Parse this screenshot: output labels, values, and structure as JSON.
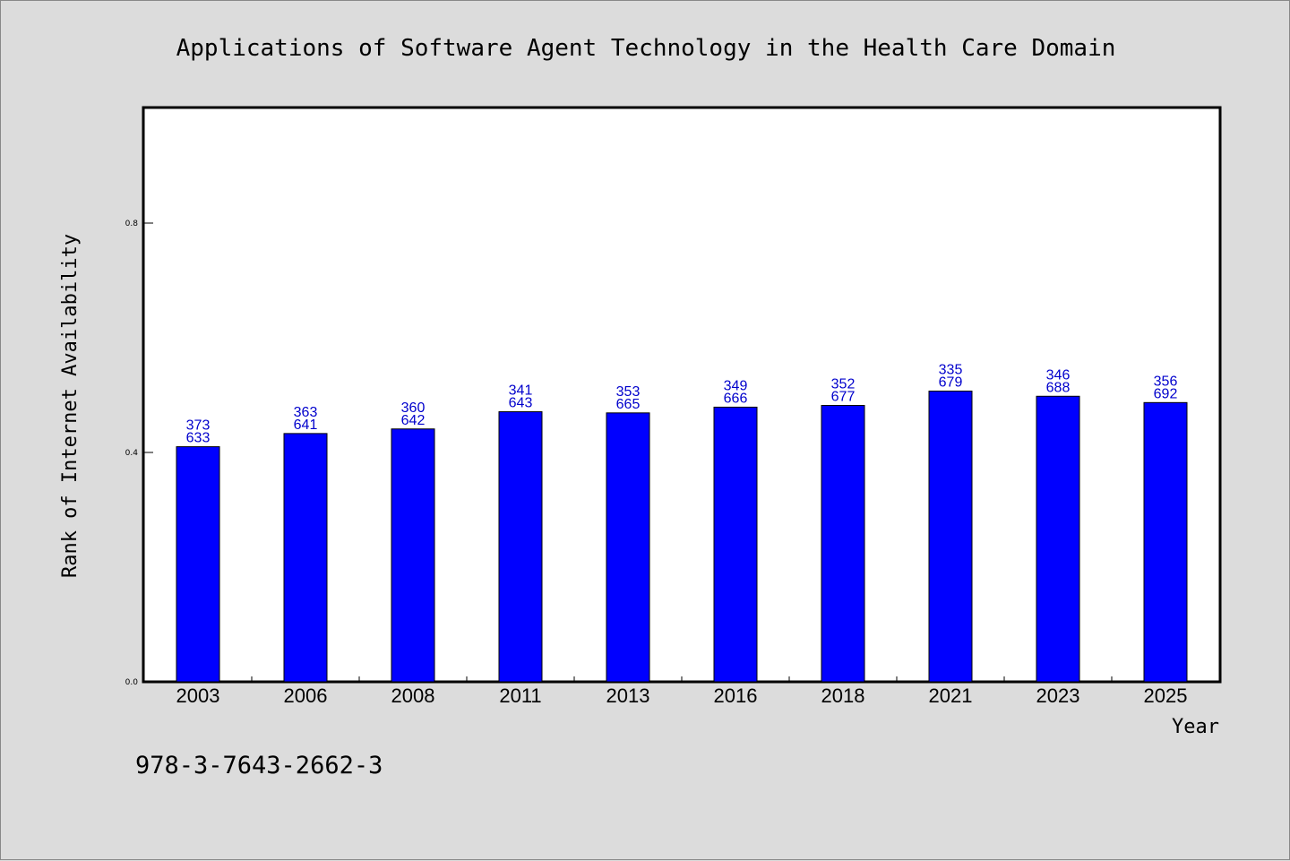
{
  "chart_data": {
    "type": "bar",
    "title": "Applications of Software Agent Technology in the Health Care Domain",
    "xlabel": "Year",
    "ylabel": "Rank of Internet Availability",
    "categories": [
      "2003",
      "2006",
      "2008",
      "2011",
      "2013",
      "2016",
      "2018",
      "2021",
      "2023",
      "2025"
    ],
    "series": [
      {
        "values": [
          0.41,
          0.433,
          0.441,
          0.471,
          0.469,
          0.479,
          0.482,
          0.507,
          0.498,
          0.487
        ],
        "labels_top": [
          "373",
          "363",
          "360",
          "341",
          "353",
          "349",
          "352",
          "335",
          "346",
          "356"
        ],
        "labels_bottom": [
          "633",
          "641",
          "642",
          "643",
          "665",
          "666",
          "677",
          "679",
          "688",
          "692"
        ]
      }
    ],
    "ylim": [
      0.0,
      1.0
    ],
    "yticks": [
      0.0,
      0.4,
      0.8
    ],
    "ytick_labels": [
      "0.0",
      "0.4",
      "0.8"
    ],
    "grid": false,
    "colors": {
      "bar": "#0000ff",
      "bar_label": "#0000cc",
      "background": "#dcdcdc",
      "plot_area": "#ffffff"
    }
  },
  "footnote": "978-3-7643-2662-3"
}
